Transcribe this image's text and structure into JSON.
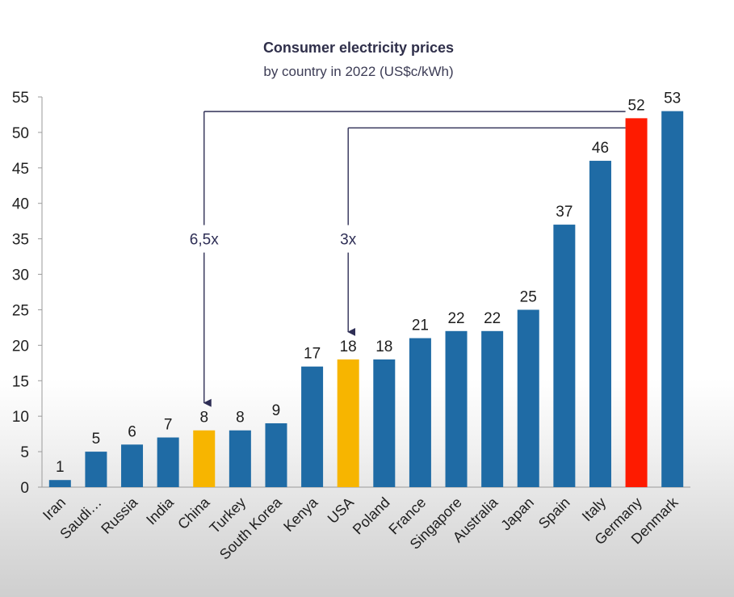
{
  "chart_data": {
    "type": "bar",
    "title": "Consumer electricity prices",
    "subtitle": "by country in 2022 (US$c/kWh)",
    "xlabel": "",
    "ylabel": "",
    "ylim": [
      0,
      55
    ],
    "yticks": [
      "0",
      "5",
      "10",
      "15",
      "20",
      "25",
      "30",
      "35",
      "40",
      "45",
      "50",
      "55"
    ],
    "categories": [
      "Iran",
      "Saudi…",
      "Russia",
      "India",
      "China",
      "Turkey",
      "South Korea",
      "Kenya",
      "USA",
      "Poland",
      "France",
      "Singapore",
      "Australia",
      "Japan",
      "Spain",
      "Italy",
      "Germany",
      "Denmark"
    ],
    "values": [
      1,
      5,
      6,
      7,
      8,
      8,
      9,
      17,
      18,
      18,
      21,
      22,
      22,
      25,
      37,
      46,
      52,
      53
    ],
    "data_labels": [
      "1",
      "5",
      "6",
      "7",
      "8",
      "8",
      "9",
      "17",
      "18",
      "18",
      "21",
      "22",
      "22",
      "25",
      "37",
      "46",
      "52",
      "53"
    ],
    "grid": false,
    "legend": "none",
    "colors": {
      "default": "#1f6ba5",
      "highlight_yellow": "#f7b500",
      "highlight_red": "#fe1b00",
      "annotation": "#2e2e55"
    },
    "highlights": {
      "China": "highlight_yellow",
      "USA": "highlight_yellow",
      "Germany": "highlight_red"
    },
    "annotations": [
      {
        "text": "6,5x",
        "from": "Germany",
        "to": "China"
      },
      {
        "text": "3x",
        "from": "Germany",
        "to": "USA"
      }
    ]
  }
}
